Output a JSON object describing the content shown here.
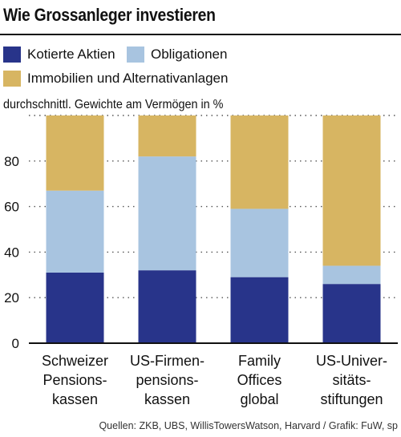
{
  "title": "Wie Grossanleger investieren",
  "legend": {
    "items": [
      {
        "label": "Kotierte Aktien",
        "color": "#28348a"
      },
      {
        "label": "Obligationen",
        "color": "#a8c4e0"
      },
      {
        "label": "Immobilien und Alternativanlagen",
        "color": "#d7b562"
      }
    ]
  },
  "source": "Quellen: ZKB, UBS, WillisTowersWatson, Harvard / Grafik: FuW, sp",
  "chart_data": {
    "type": "bar",
    "stacked": true,
    "title": "Wie Grossanleger investieren",
    "ylabel": "durchschnittl. Gewichte am Vermögen in %",
    "xlabel": "",
    "ylim": [
      0,
      100
    ],
    "yticks": [
      0,
      20,
      40,
      60,
      80
    ],
    "grid": "dotted horizontal",
    "legend_position": "top",
    "categories": [
      [
        "Schweizer",
        "Pensions-",
        "kassen"
      ],
      [
        "US-Firmen-",
        "pensions-",
        "kassen"
      ],
      [
        "Family",
        "Offices",
        "global"
      ],
      [
        "US-Univer-",
        "sitäts-",
        "stiftungen"
      ]
    ],
    "series": [
      {
        "name": "Kotierte Aktien",
        "color": "#28348a",
        "values": [
          31,
          32,
          29,
          26
        ]
      },
      {
        "name": "Obligationen",
        "color": "#a8c4e0",
        "values": [
          36,
          50,
          30,
          8
        ]
      },
      {
        "name": "Immobilien und Alternativanlagen",
        "color": "#d7b562",
        "values": [
          33,
          18,
          41,
          66
        ]
      }
    ]
  }
}
